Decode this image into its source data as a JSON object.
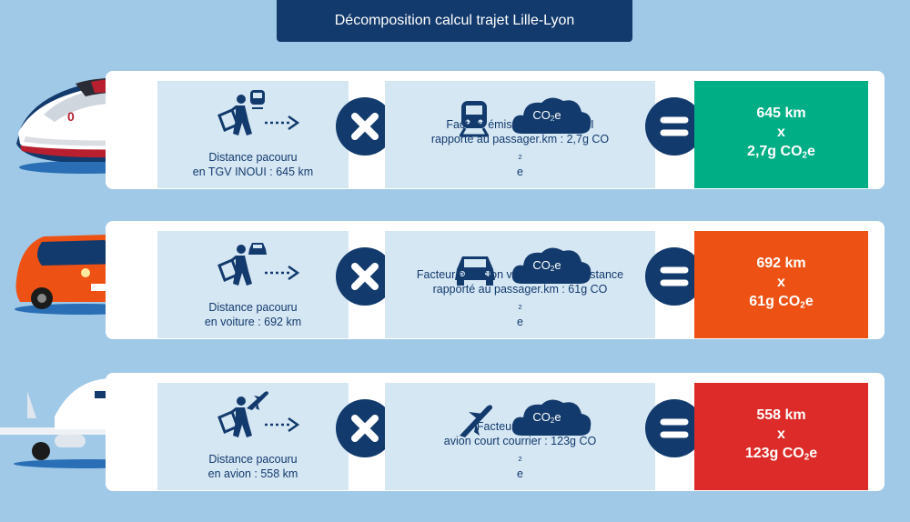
{
  "title": "Décomposition calcul trajet Lille-Lyon",
  "colors": {
    "navy": "#123a6c",
    "train_result": "#00ae86",
    "car_result": "#ee5114",
    "plane_result": "#dc2b28",
    "panel": "#d6e7f4",
    "background": "#9fc9e7"
  },
  "rows": [
    {
      "vehicle": "train",
      "distance_line1": "Distance pacouru",
      "distance_line2": "en TGV INOUI : 645 km",
      "factor_line1": "Facteur émission TGV INOUI",
      "factor_line2": "rapporté au passager.km : 2,7g CO",
      "factor_sub": "2",
      "factor_end": "e",
      "result_distance": "645 km",
      "result_times": "x",
      "result_value": "2,7g CO",
      "result_sub": "2",
      "result_end": "e"
    },
    {
      "vehicle": "car",
      "distance_line1": "Distance pacouru",
      "distance_line2": "en voiture : 692 km",
      "factor_line1": "Facteur émission voiture longue distance",
      "factor_line2": "rapporté au passager.km : 61g CO",
      "factor_sub": "2",
      "factor_end": "e",
      "result_distance": "692 km",
      "result_times": "x",
      "result_value": "61g CO",
      "result_sub": "2",
      "result_end": "e"
    },
    {
      "vehicle": "plane",
      "distance_line1": "Distance pacouru",
      "distance_line2": "en avion : 558 km",
      "factor_line1": "Facteur émission",
      "factor_line2": "avion court courrier : 123g CO",
      "factor_sub": "2",
      "factor_end": "e",
      "result_distance": "558 km",
      "result_times": "x",
      "result_value": "123g CO",
      "result_sub": "2",
      "result_end": "e"
    }
  ],
  "cloud_label": "CO",
  "cloud_sub": "2",
  "cloud_end": "e",
  "icons": [
    "traveler-icon",
    "arrow-icon",
    "train-icon",
    "car-icon",
    "plane-icon",
    "co2-cloud-icon",
    "multiply-icon",
    "equals-icon"
  ]
}
